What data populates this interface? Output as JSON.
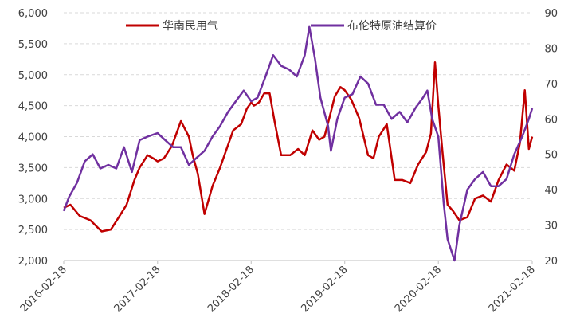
{
  "chart_data": {
    "type": "line",
    "title": "",
    "xlabel": "",
    "ylabel_left": "",
    "ylabel_right": "",
    "x_ticks": [
      "2016-02-18",
      "2017-02-18",
      "2018-02-18",
      "2019-02-18",
      "2020-02-18",
      "2021-02-18"
    ],
    "x_range": [
      "2016-02-18",
      "2021-02-18"
    ],
    "y_left": {
      "min": 2000,
      "max": 6000,
      "ticks": [
        "2,000",
        "2,500",
        "3,000",
        "3,500",
        "4,000",
        "4,500",
        "5,000",
        "5,500",
        "6,000"
      ]
    },
    "y_right": {
      "min": 20,
      "max": 90,
      "ticks": [
        "20",
        "30",
        "40",
        "50",
        "60",
        "70",
        "80",
        "90"
      ]
    },
    "grid": "horizontal dashed",
    "legend_position": "top",
    "series": [
      {
        "name": "华南民用气",
        "axis": "left",
        "color": "#c00000",
        "x": [
          "2016-02-18",
          "2016-03-15",
          "2016-04-20",
          "2016-06-01",
          "2016-07-15",
          "2016-08-20",
          "2016-09-20",
          "2016-10-20",
          "2016-11-20",
          "2016-12-10",
          "2017-01-10",
          "2017-02-01",
          "2017-02-18",
          "2017-03-15",
          "2017-04-15",
          "2017-05-20",
          "2017-06-20",
          "2017-07-05",
          "2017-07-25",
          "2017-08-20",
          "2017-09-20",
          "2017-10-20",
          "2017-11-10",
          "2017-12-10",
          "2018-01-10",
          "2018-02-01",
          "2018-02-18",
          "2018-03-01",
          "2018-03-20",
          "2018-04-10",
          "2018-05-01",
          "2018-05-20",
          "2018-06-15",
          "2018-07-20",
          "2018-08-20",
          "2018-09-15",
          "2018-10-15",
          "2018-11-10",
          "2018-12-01",
          "2018-12-20",
          "2019-01-10",
          "2019-02-01",
          "2019-02-18",
          "2019-03-15",
          "2019-04-15",
          "2019-05-20",
          "2019-06-10",
          "2019-07-01",
          "2019-08-01",
          "2019-09-01",
          "2019-10-01",
          "2019-11-01",
          "2019-12-01",
          "2020-01-01",
          "2020-01-20",
          "2020-02-05",
          "2020-02-18",
          "2020-03-05",
          "2020-03-25",
          "2020-04-15",
          "2020-05-10",
          "2020-06-10",
          "2020-07-10",
          "2020-08-10",
          "2020-09-10",
          "2020-10-10",
          "2020-11-10",
          "2020-12-10",
          "2021-01-01",
          "2021-01-20",
          "2021-02-05",
          "2021-02-18"
        ],
        "values": [
          2850,
          2900,
          2720,
          2650,
          2470,
          2500,
          2700,
          2900,
          3300,
          3500,
          3700,
          3650,
          3600,
          3650,
          3850,
          4250,
          4000,
          3700,
          3400,
          2750,
          3200,
          3500,
          3750,
          4100,
          4200,
          4450,
          4550,
          4500,
          4550,
          4700,
          4700,
          4250,
          3700,
          3700,
          3800,
          3700,
          4100,
          3950,
          4000,
          4300,
          4650,
          4800,
          4750,
          4600,
          4300,
          3700,
          3650,
          4000,
          4200,
          3300,
          3300,
          3250,
          3550,
          3750,
          4050,
          5200,
          4500,
          3750,
          2900,
          2800,
          2650,
          2700,
          3000,
          3050,
          2950,
          3300,
          3550,
          3450,
          3900,
          4750,
          3800,
          4000
        ]
      },
      {
        "name": "布伦特原油结算价",
        "axis": "right",
        "color": "#7030a0",
        "x": [
          "2016-02-18",
          "2016-03-10",
          "2016-04-10",
          "2016-05-10",
          "2016-06-10",
          "2016-07-10",
          "2016-08-10",
          "2016-09-10",
          "2016-10-10",
          "2016-11-10",
          "2016-12-10",
          "2017-01-10",
          "2017-02-18",
          "2017-03-20",
          "2017-04-20",
          "2017-05-20",
          "2017-06-20",
          "2017-07-20",
          "2017-08-20",
          "2017-09-20",
          "2017-10-20",
          "2017-11-20",
          "2017-12-20",
          "2018-01-20",
          "2018-02-18",
          "2018-03-15",
          "2018-04-15",
          "2018-05-15",
          "2018-06-15",
          "2018-07-15",
          "2018-08-15",
          "2018-09-15",
          "2018-10-03",
          "2018-10-25",
          "2018-11-15",
          "2018-12-15",
          "2018-12-26",
          "2019-01-20",
          "2019-02-18",
          "2019-03-20",
          "2019-04-20",
          "2019-05-20",
          "2019-06-20",
          "2019-07-20",
          "2019-08-20",
          "2019-09-20",
          "2019-10-20",
          "2019-11-20",
          "2019-12-20",
          "2020-01-06",
          "2020-01-25",
          "2020-02-18",
          "2020-03-10",
          "2020-03-25",
          "2020-04-21",
          "2020-05-10",
          "2020-06-10",
          "2020-07-10",
          "2020-08-10",
          "2020-09-10",
          "2020-10-10",
          "2020-11-10",
          "2020-12-10",
          "2021-01-10",
          "2021-02-05",
          "2021-02-18"
        ],
        "values": [
          34,
          38,
          42,
          48,
          50,
          46,
          47,
          46,
          52,
          45,
          54,
          55,
          56,
          54,
          52,
          52,
          47,
          49,
          51,
          55,
          58,
          62,
          65,
          68,
          65,
          66,
          72,
          78,
          75,
          74,
          72,
          78,
          86,
          77,
          66,
          58,
          51,
          60,
          66,
          67,
          72,
          70,
          64,
          64,
          60,
          62,
          59,
          63,
          66,
          68,
          60,
          55,
          36,
          26,
          20,
          30,
          40,
          43,
          45,
          41,
          41,
          43,
          50,
          55,
          60,
          63
        ]
      }
    ]
  }
}
